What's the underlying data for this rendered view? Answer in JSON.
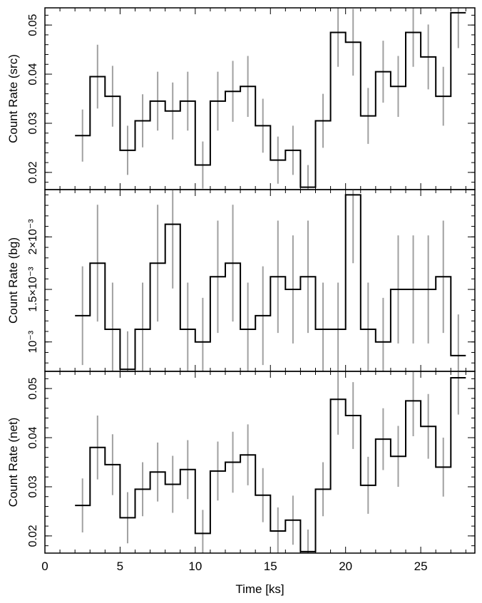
{
  "chart_data": [
    {
      "type": "line",
      "step": true,
      "ylabel": "Count Rate (src)",
      "xlim": [
        0,
        28.6
      ],
      "ylim": [
        0.0165,
        0.0535
      ],
      "yticks": [
        0.02,
        0.03,
        0.04,
        0.05
      ],
      "ytick_labels": [
        "0.02",
        "0.03",
        "0.04",
        "0.05"
      ],
      "x": [
        2.5,
        3.5,
        4.5,
        5.5,
        6.5,
        7.5,
        8.5,
        9.5,
        10.5,
        11.5,
        12.5,
        13.5,
        14.5,
        15.5,
        16.5,
        17.5,
        18.5,
        19.5,
        20.5,
        21.5,
        22.5,
        23.5,
        24.5,
        25.5,
        26.5,
        27.5
      ],
      "y": [
        0.0275,
        0.0395,
        0.0355,
        0.0245,
        0.0305,
        0.0345,
        0.0325,
        0.0345,
        0.0215,
        0.0345,
        0.0365,
        0.0375,
        0.0295,
        0.0225,
        0.0245,
        0.017,
        0.0305,
        0.0485,
        0.0465,
        0.0315,
        0.0405,
        0.0375,
        0.0485,
        0.0435,
        0.0355,
        0.0525
      ],
      "yerr": [
        0.0053,
        0.0065,
        0.0062,
        0.005,
        0.0054,
        0.006,
        0.0058,
        0.006,
        0.0048,
        0.006,
        0.0062,
        0.0062,
        0.0055,
        0.0048,
        0.005,
        0.0045,
        0.0055,
        0.007,
        0.0068,
        0.0057,
        0.0063,
        0.0062,
        0.007,
        0.0066,
        0.006,
        0.0072
      ]
    },
    {
      "type": "line",
      "step": true,
      "ylabel": "Count Rate (bg)",
      "xlim": [
        0,
        28.6
      ],
      "ylim": [
        0.00072,
        0.00245
      ],
      "yticks": [
        0.001,
        0.0015,
        0.002
      ],
      "ytick_labels": [
        "10⁻³",
        "1.5×10⁻³",
        "2×10⁻³"
      ],
      "x": [
        2.5,
        3.5,
        4.5,
        5.5,
        6.5,
        7.5,
        8.5,
        9.5,
        10.5,
        11.5,
        12.5,
        13.5,
        14.5,
        15.5,
        16.5,
        17.5,
        18.5,
        19.5,
        20.5,
        21.5,
        22.5,
        23.5,
        24.5,
        25.5,
        26.5,
        27.5
      ],
      "y": [
        0.00125,
        0.00175,
        0.00112,
        0.00074,
        0.00112,
        0.00175,
        0.00212,
        0.00112,
        0.001,
        0.00162,
        0.00175,
        0.00112,
        0.00125,
        0.00162,
        0.0015,
        0.00162,
        0.00112,
        0.00112,
        0.0024,
        0.00112,
        0.001,
        0.0015,
        0.0015,
        0.0015,
        0.00162,
        0.00087
      ]
    },
    {
      "type": "line",
      "step": true,
      "ylabel": "Count Rate (net)",
      "xlabel": "Time [ks]",
      "xlim": [
        0,
        28.6
      ],
      "ylim": [
        0.0165,
        0.0535
      ],
      "xticks": [
        0,
        5,
        10,
        15,
        20,
        25
      ],
      "xtick_labels": [
        "0",
        "5",
        "10",
        "15",
        "20",
        "25"
      ],
      "yticks": [
        0.02,
        0.03,
        0.04,
        0.05
      ],
      "ytick_labels": [
        "0.02",
        "0.03",
        "0.04",
        "0.05"
      ],
      "x": [
        2.5,
        3.5,
        4.5,
        5.5,
        6.5,
        7.5,
        8.5,
        9.5,
        10.5,
        11.5,
        12.5,
        13.5,
        14.5,
        15.5,
        16.5,
        17.5,
        18.5,
        19.5,
        20.5,
        21.5,
        22.5,
        23.5,
        24.5,
        25.5,
        26.5,
        27.5
      ],
      "y": [
        0.0262,
        0.038,
        0.0345,
        0.0237,
        0.0295,
        0.033,
        0.0305,
        0.0335,
        0.0205,
        0.0332,
        0.035,
        0.0365,
        0.0283,
        0.021,
        0.0232,
        0.0168,
        0.0295,
        0.0478,
        0.0445,
        0.0303,
        0.0397,
        0.0362,
        0.0475,
        0.0423,
        0.034,
        0.0522
      ],
      "yerr": [
        0.0055,
        0.0065,
        0.0062,
        0.0052,
        0.0055,
        0.006,
        0.0058,
        0.006,
        0.0048,
        0.006,
        0.0062,
        0.0062,
        0.0055,
        0.0048,
        0.005,
        0.0045,
        0.0055,
        0.0072,
        0.0068,
        0.0058,
        0.0063,
        0.0062,
        0.0072,
        0.0066,
        0.006,
        0.0075
      ]
    }
  ],
  "colors": {
    "step_line": "#000000",
    "error_bar": "#a0a0a0",
    "axes": "#000000"
  }
}
